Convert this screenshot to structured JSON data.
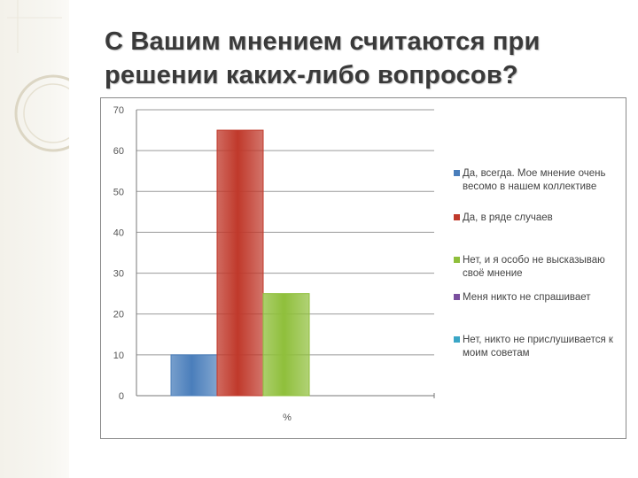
{
  "slide": {
    "title_line1": "С Вашим мнением считаются при",
    "title_line2": "решении каких-либо вопросов?"
  },
  "chart_data": {
    "type": "bar",
    "categories": [
      "%"
    ],
    "ylim": [
      0,
      70
    ],
    "yticks": [
      0,
      10,
      20,
      30,
      40,
      50,
      60,
      70
    ],
    "grid": true,
    "legend_position": "right",
    "xlabel": "%",
    "ylabel": "",
    "series": [
      {
        "name": "Да, всегда. Мое мнение очень весомо в нашем коллективе",
        "values": [
          10
        ],
        "color": "#4a7ebb"
      },
      {
        "name": "Да, в ряде случаев",
        "values": [
          65
        ],
        "color": "#c0392b"
      },
      {
        "name": "Нет, и я особо не высказываю своё мнение",
        "values": [
          25
        ],
        "color": "#8fbf3b"
      },
      {
        "name": "Меня никто не спрашивает",
        "values": [
          0
        ],
        "color": "#7a4f9e"
      },
      {
        "name": "Нет, никто не прислушивается к моим советам",
        "values": [
          0
        ],
        "color": "#3aa6c6"
      }
    ]
  }
}
